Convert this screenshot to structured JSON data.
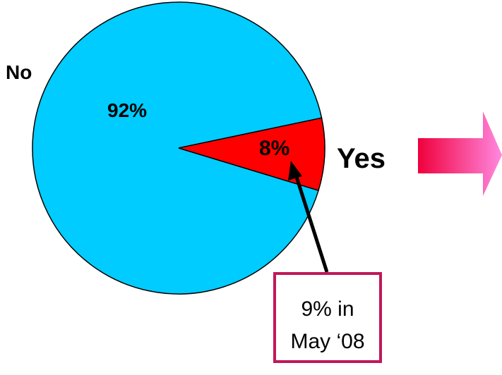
{
  "chart_data": {
    "type": "pie",
    "slices": [
      {
        "label": "No",
        "value": 92,
        "value_label": "92%",
        "color": "#00CCFF"
      },
      {
        "label": "Yes",
        "value": 8,
        "value_label": "8%",
        "color": "#FF0000"
      }
    ],
    "annotation": {
      "lines": [
        "9% in",
        "May ‘08"
      ],
      "border_color": "#C0185A"
    },
    "arrow_colors": [
      "#F0003C",
      "#FF88E0"
    ]
  }
}
